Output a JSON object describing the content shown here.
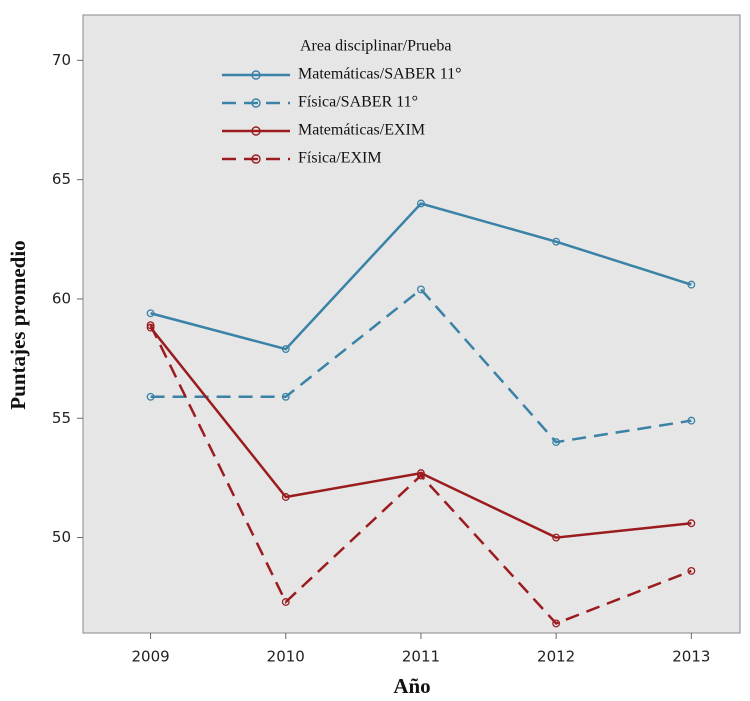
{
  "chart_data": {
    "type": "line",
    "x_label": "Año",
    "y_label": "Puntajes promedio",
    "legend_title": "Area disciplinar/Prueba",
    "x": [
      2009,
      2010,
      2011,
      2012,
      2013
    ],
    "xlim": [
      2008.5,
      2013.36
    ],
    "xticks": [
      2009,
      2010,
      2011,
      2012,
      2013
    ],
    "ylim": [
      46.0,
      71.9
    ],
    "yticks": [
      50,
      55,
      60,
      65,
      70
    ],
    "series": [
      {
        "name": "Matemáticas/SABER 11°",
        "color": "#3a82a6",
        "line_style": "solid",
        "values": [
          59.4,
          57.9,
          64.0,
          62.4,
          60.6
        ]
      },
      {
        "name": "Física/SABER 11°",
        "color": "#3a82a6",
        "line_style": "dashed",
        "values": [
          55.9,
          55.9,
          60.4,
          54.0,
          54.9
        ]
      },
      {
        "name": "Matemáticas/EXIM",
        "color": "#9b1c1f",
        "line_style": "solid",
        "values": [
          58.8,
          51.7,
          52.7,
          50.0,
          50.6
        ]
      },
      {
        "name": "Física/EXIM",
        "color": "#9b1c1f",
        "line_style": "dashed",
        "values": [
          58.9,
          47.3,
          52.6,
          46.4,
          48.6
        ]
      }
    ]
  }
}
